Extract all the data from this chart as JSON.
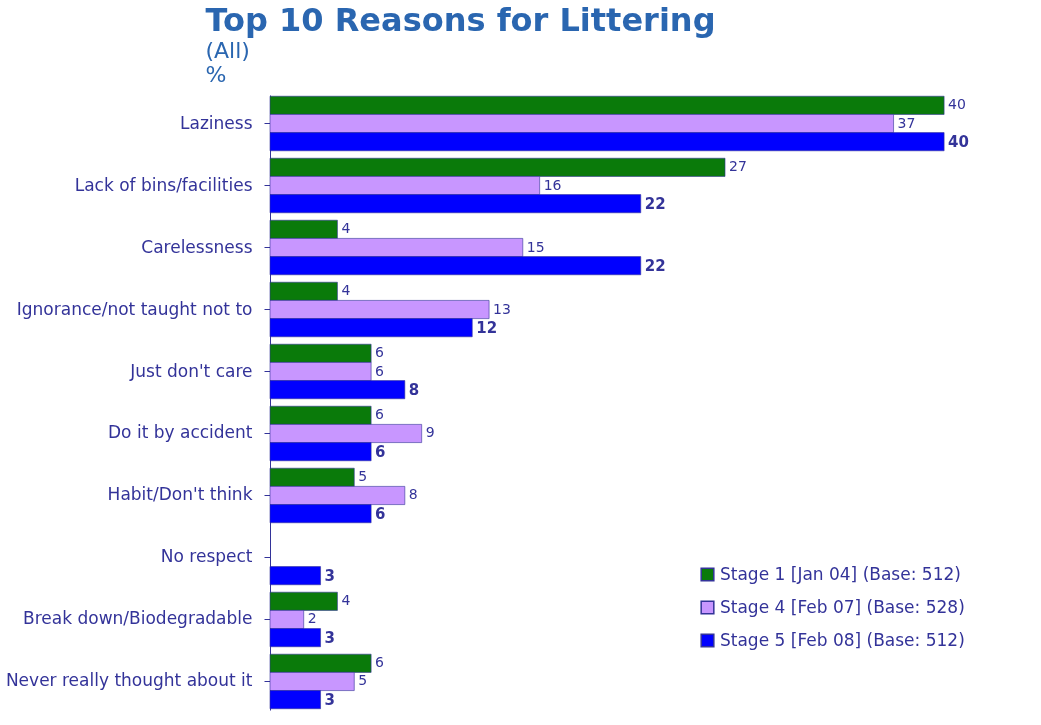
{
  "chart_data": {
    "type": "bar",
    "orientation": "horizontal",
    "title": "Top 10 Reasons for Littering",
    "subtitle": "(All)\n%",
    "categories": [
      "Laziness",
      "Lack of bins/facilities",
      "Carelessness",
      "Ignorance/not taught not to",
      "Just don't care",
      "Do it by accident",
      "Habit/Don't think",
      "No respect",
      "Break down/Biodegradable",
      "Never really thought about it"
    ],
    "series": [
      {
        "name": "Stage 1 [Jan 04] (Base: 512)",
        "color": "#0a7a0a",
        "values": [
          40,
          27,
          4,
          4,
          6,
          6,
          5,
          null,
          4,
          6
        ]
      },
      {
        "name": "Stage 4 [Feb 07] (Base: 528)",
        "color": "#c896ff",
        "values": [
          37,
          16,
          15,
          13,
          6,
          9,
          8,
          null,
          2,
          5
        ]
      },
      {
        "name": "Stage 5 [Feb 08] (Base: 512)",
        "color": "#0000ff",
        "values": [
          40,
          22,
          22,
          12,
          8,
          6,
          6,
          3,
          3,
          3
        ]
      }
    ],
    "data_labels": true,
    "legend": "bottom right",
    "grid": false
  }
}
